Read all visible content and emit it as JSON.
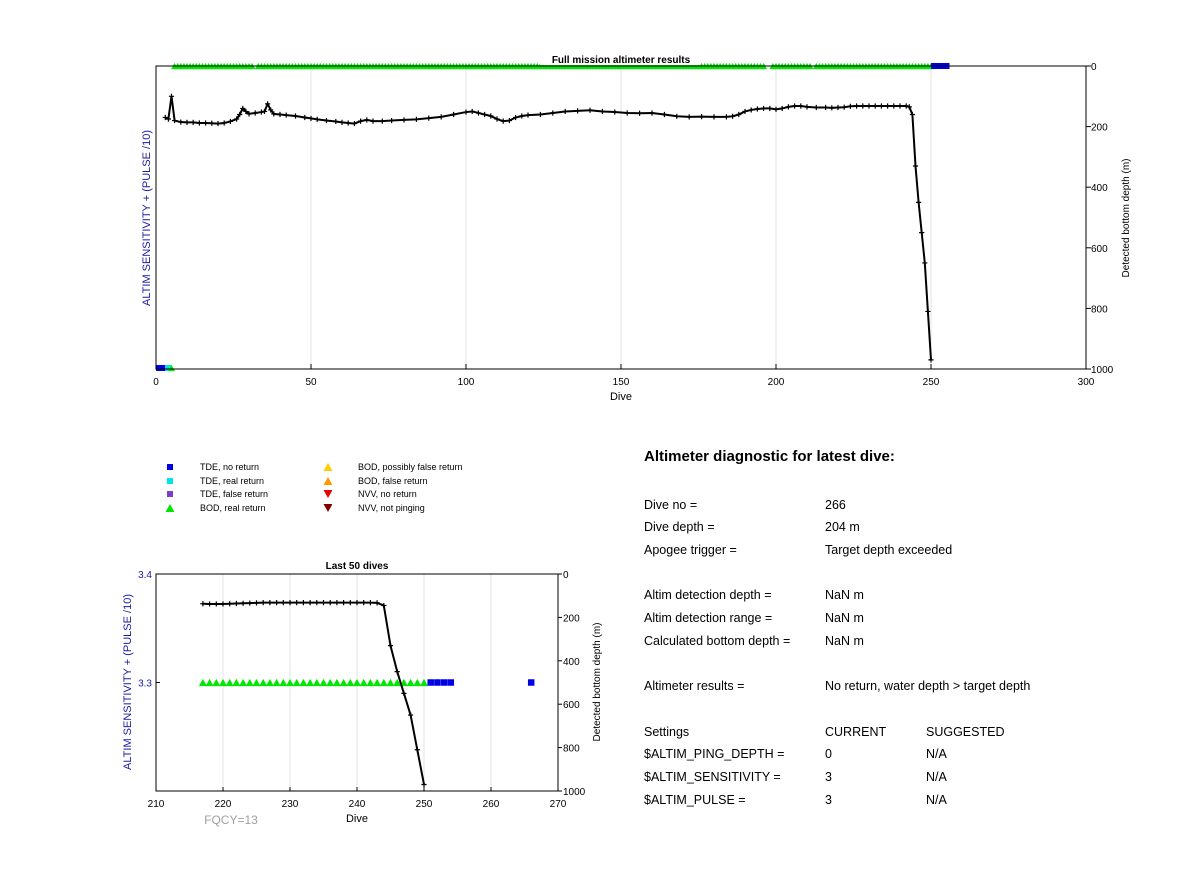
{
  "colors": {
    "tde_no_return": "#0000e6",
    "tde_real_return": "#00e6e6",
    "tde_false_return": "#7b3fc4",
    "bod_real_return": "#00e600",
    "bod_possibly_false": "#ffcc00",
    "bod_false_return": "#ff9900",
    "nvv_no_return": "#e60000",
    "nvv_not_pinging": "#800000",
    "axis_blue": "#1a1aa6",
    "depth_line": "#000000",
    "grid": "#e3e3e3",
    "fqcy_gray": "#a0a0a0"
  },
  "legend": [
    {
      "id": "tde_no_return",
      "label": "TDE, no return",
      "marker": "square",
      "color": "#0000e6"
    },
    {
      "id": "tde_real_return",
      "label": "TDE, real return",
      "marker": "square",
      "color": "#00e6e6"
    },
    {
      "id": "tde_false_return",
      "label": "TDE, false return",
      "marker": "square",
      "color": "#7b3fc4"
    },
    {
      "id": "bod_real_return",
      "label": "BOD, real return",
      "marker": "triangle-up",
      "color": "#00e600"
    },
    {
      "id": "bod_possibly_false",
      "label": "BOD, possibly false return",
      "marker": "triangle-up",
      "color": "#ffcc00"
    },
    {
      "id": "bod_false_return",
      "label": "BOD, false return",
      "marker": "triangle-up",
      "color": "#ff9900"
    },
    {
      "id": "nvv_no_return",
      "label": "NVV, no return",
      "marker": "triangle-down",
      "color": "#e60000"
    },
    {
      "id": "nvv_not_pinging",
      "label": "NVV, not pinging",
      "marker": "triangle-down",
      "color": "#800000"
    }
  ],
  "diagnostic": {
    "title": "Altimeter diagnostic for latest dive:",
    "rows": [
      {
        "label": "Dive no =",
        "value": "266"
      },
      {
        "label": "Dive depth =",
        "value": "204 m"
      },
      {
        "label": "Apogee trigger =",
        "value": "Target depth exceeded"
      },
      {
        "label": "Altim detection depth =",
        "value": "NaN m"
      },
      {
        "label": "Altim detection range =",
        "value": "NaN m"
      },
      {
        "label": "Calculated bottom depth =",
        "value": "NaN m"
      },
      {
        "label": "Altimeter results =",
        "value": "No return, water depth > target depth"
      }
    ],
    "settings_header": {
      "label": "Settings",
      "current": "CURRENT",
      "suggested": "SUGGESTED"
    },
    "settings": [
      {
        "name": "$ALTIM_PING_DEPTH =",
        "current": "0",
        "suggested": "N/A"
      },
      {
        "name": "$ALTIM_SENSITIVITY =",
        "current": "3",
        "suggested": "N/A"
      },
      {
        "name": "$ALTIM_PULSE =",
        "current": "3",
        "suggested": "N/A"
      }
    ]
  },
  "chart_data": [
    {
      "type": "line",
      "title": "Full mission altimeter results",
      "xlabel": "Dive",
      "ylabel": "ALTIM SENSITIVITY + (PULSE /10)",
      "y2label": "Detected bottom depth (m)",
      "xlim": [
        0,
        300
      ],
      "xticks": [
        0,
        50,
        100,
        150,
        200,
        250,
        300
      ],
      "y2lim": [
        0,
        1000
      ],
      "y2ticks": [
        0,
        200,
        400,
        600,
        800,
        1000
      ],
      "y2_reversed": true,
      "grid": "vertical",
      "series": [
        {
          "name": "Detected bottom depth",
          "axis": "right",
          "style": "line-plus",
          "points": [
            [
              3,
              170
            ],
            [
              4,
              175
            ],
            [
              5,
              100
            ],
            [
              6,
              180
            ],
            [
              8,
              185
            ],
            [
              10,
              186
            ],
            [
              12,
              186
            ],
            [
              14,
              188
            ],
            [
              16,
              188
            ],
            [
              18,
              189
            ],
            [
              20,
              190
            ],
            [
              22,
              188
            ],
            [
              24,
              183
            ],
            [
              26,
              175
            ],
            [
              27,
              160
            ],
            [
              28,
              140
            ],
            [
              29,
              150
            ],
            [
              30,
              158
            ],
            [
              32,
              155
            ],
            [
              34,
              152
            ],
            [
              35,
              150
            ],
            [
              36,
              125
            ],
            [
              37,
              145
            ],
            [
              38,
              158
            ],
            [
              40,
              160
            ],
            [
              42,
              162
            ],
            [
              45,
              165
            ],
            [
              48,
              170
            ],
            [
              50,
              173
            ],
            [
              52,
              176
            ],
            [
              55,
              180
            ],
            [
              58,
              183
            ],
            [
              60,
              186
            ],
            [
              62,
              188
            ],
            [
              64,
              190
            ],
            [
              66,
              182
            ],
            [
              68,
              178
            ],
            [
              70,
              182
            ],
            [
              73,
              182
            ],
            [
              76,
              180
            ],
            [
              80,
              178
            ],
            [
              84,
              176
            ],
            [
              88,
              172
            ],
            [
              92,
              168
            ],
            [
              96,
              160
            ],
            [
              100,
              152
            ],
            [
              102,
              150
            ],
            [
              104,
              155
            ],
            [
              106,
              160
            ],
            [
              108,
              165
            ],
            [
              110,
              175
            ],
            [
              112,
              182
            ],
            [
              114,
              180
            ],
            [
              116,
              170
            ],
            [
              118,
              165
            ],
            [
              120,
              162
            ],
            [
              124,
              160
            ],
            [
              128,
              155
            ],
            [
              132,
              150
            ],
            [
              136,
              148
            ],
            [
              140,
              146
            ],
            [
              144,
              150
            ],
            [
              148,
              152
            ],
            [
              152,
              155
            ],
            [
              156,
              156
            ],
            [
              160,
              155
            ],
            [
              164,
              160
            ],
            [
              168,
              166
            ],
            [
              172,
              168
            ],
            [
              176,
              167
            ],
            [
              180,
              168
            ],
            [
              184,
              168
            ],
            [
              186,
              166
            ],
            [
              188,
              160
            ],
            [
              190,
              150
            ],
            [
              192,
              145
            ],
            [
              194,
              142
            ],
            [
              196,
              140
            ],
            [
              198,
              140
            ],
            [
              200,
              143
            ],
            [
              202,
              140
            ],
            [
              204,
              135
            ],
            [
              206,
              132
            ],
            [
              208,
              132
            ],
            [
              210,
              135
            ],
            [
              213,
              137
            ],
            [
              216,
              137
            ],
            [
              218,
              138
            ],
            [
              220,
              137
            ],
            [
              222,
              136
            ],
            [
              224,
              133
            ],
            [
              226,
              132
            ],
            [
              228,
              132
            ],
            [
              230,
              132
            ],
            [
              232,
              132
            ],
            [
              234,
              132
            ],
            [
              236,
              132
            ],
            [
              238,
              132
            ],
            [
              240,
              132
            ],
            [
              242,
              132
            ],
            [
              243,
              135
            ],
            [
              244,
              160
            ],
            [
              245,
              330
            ],
            [
              246,
              450
            ],
            [
              247,
              550
            ],
            [
              248,
              650
            ],
            [
              249,
              810
            ],
            [
              250,
              970
            ]
          ]
        },
        {
          "name": "BOD, real return",
          "axis": "top-band",
          "marker": "triangle-up",
          "color": "#00e600",
          "x_ranges": [
            [
              6,
              31
            ],
            [
              33,
              196
            ],
            [
              199,
              211
            ],
            [
              213,
              250
            ]
          ]
        },
        {
          "name": "TDE, no return",
          "axis": "top-band",
          "marker": "square",
          "color": "#0000e6",
          "x_ranges": [
            [
              251,
              255
            ]
          ]
        },
        {
          "name": "TDE, no return (low)",
          "axis": "left-bottom",
          "marker": "square",
          "color": "#0000e6",
          "x": [
            1,
            2
          ]
        },
        {
          "name": "TDE, real return (low)",
          "axis": "left-bottom",
          "marker": "square",
          "color": "#00e6e6",
          "x": [
            4
          ]
        },
        {
          "name": "BOD, real return (low)",
          "axis": "left-bottom",
          "marker": "triangle-up",
          "color": "#00e600",
          "x": [
            5
          ]
        }
      ]
    },
    {
      "type": "line",
      "title": "Last 50 dives",
      "xlabel": "Dive",
      "ylabel": "ALTIM SENSITIVITY + (PULSE /10)",
      "y2label": "Detected bottom depth (m)",
      "xlim": [
        210,
        270
      ],
      "xticks": [
        210,
        220,
        230,
        240,
        250,
        260,
        270
      ],
      "ylim": [
        3.2,
        3.4
      ],
      "yticks": [
        3.3,
        3.4
      ],
      "y2lim": [
        0,
        1000
      ],
      "y2ticks": [
        0,
        200,
        400,
        600,
        800,
        1000
      ],
      "y2_reversed": true,
      "grid": "vertical",
      "annotation": "FQCY=13",
      "series": [
        {
          "name": "Detected bottom depth",
          "axis": "right",
          "style": "line-plus",
          "points": [
            [
              217,
              137
            ],
            [
              218,
              138
            ],
            [
              219,
              138
            ],
            [
              220,
              138
            ],
            [
              221,
              137
            ],
            [
              222,
              136
            ],
            [
              223,
              135
            ],
            [
              224,
              134
            ],
            [
              225,
              133
            ],
            [
              226,
              132
            ],
            [
              227,
              132
            ],
            [
              228,
              132
            ],
            [
              229,
              132
            ],
            [
              230,
              132
            ],
            [
              231,
              132
            ],
            [
              232,
              132
            ],
            [
              233,
              132
            ],
            [
              234,
              132
            ],
            [
              235,
              132
            ],
            [
              236,
              132
            ],
            [
              237,
              132
            ],
            [
              238,
              132
            ],
            [
              239,
              132
            ],
            [
              240,
              132
            ],
            [
              241,
              132
            ],
            [
              242,
              132
            ],
            [
              243,
              133
            ],
            [
              244,
              145
            ],
            [
              245,
              330
            ],
            [
              246,
              450
            ],
            [
              247,
              550
            ],
            [
              248,
              650
            ],
            [
              249,
              810
            ],
            [
              250,
              970
            ]
          ]
        },
        {
          "name": "BOD, real return",
          "axis": "left",
          "marker": "triangle-up",
          "color": "#00e600",
          "x_from": 217,
          "x_to": 250,
          "y": 3.3
        },
        {
          "name": "TDE, no return",
          "axis": "left",
          "marker": "square",
          "color": "#0000e6",
          "x": [
            251,
            252,
            253,
            254,
            266
          ],
          "y": 3.3
        }
      ]
    }
  ]
}
